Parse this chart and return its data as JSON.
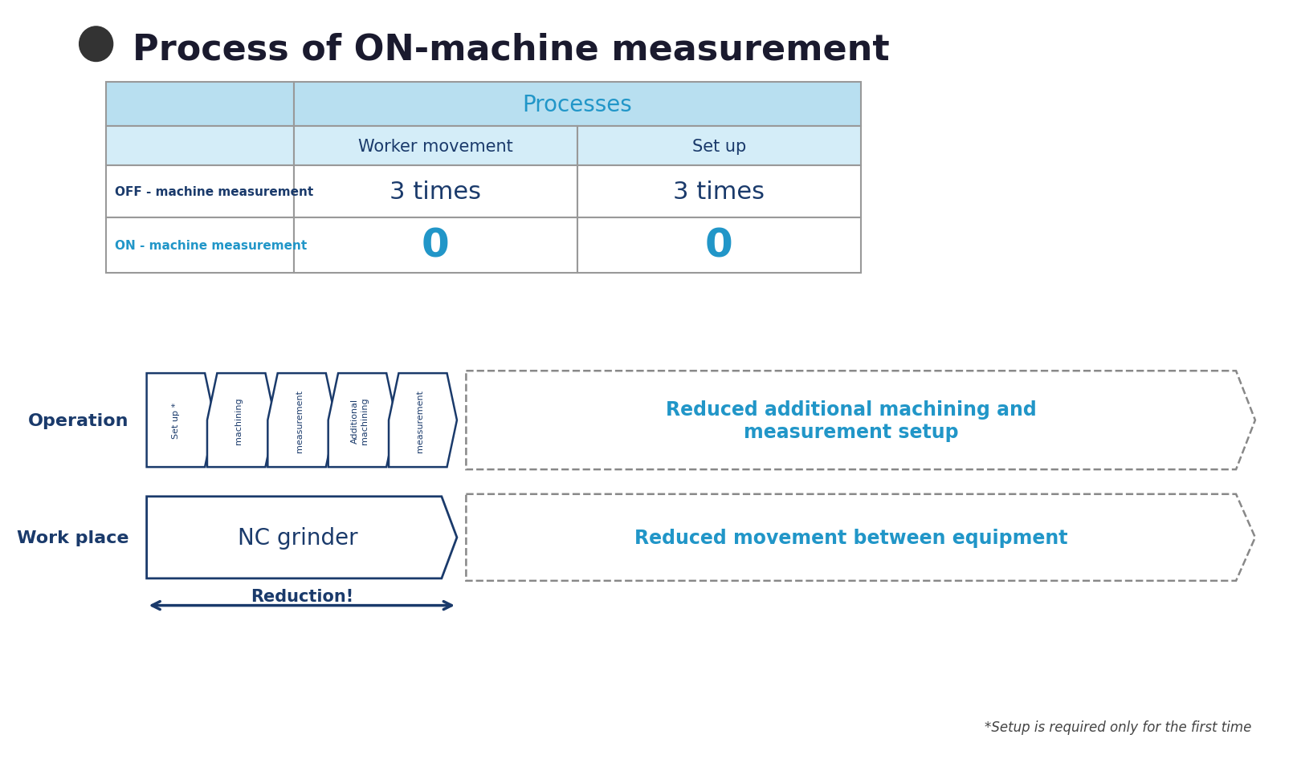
{
  "title": "Process of ON-machine measurement",
  "title_fontsize": 32,
  "title_color": "#1a1a2e",
  "bg_color": "#ffffff",
  "dark_blue": "#1a3a6b",
  "cyan_blue": "#2196C8",
  "light_blue_header": "#b8dff0",
  "light_blue_subheader": "#d4edf8",
  "table": {
    "processes_label": "Processes",
    "worker_movement": "Worker movement",
    "setup": "Set up",
    "off_label": "OFF - machine measurement",
    "on_label": "ON - machine measurement",
    "off_worker": "3 times",
    "off_setup": "3 times",
    "on_worker": "0",
    "on_setup": "0"
  },
  "operation_label": "Operation",
  "workplace_label": "Work place",
  "process_steps": [
    "Set up *",
    "machining",
    "measurement",
    "Additional\nmachining",
    "measurement"
  ],
  "nc_grinder_label": "NC grinder",
  "reduction_label": "Reduction!",
  "reduced_text1": "Reduced additional machining and\nmeasurement setup",
  "reduced_text2": "Reduced movement between equipment",
  "footnote": "*Setup is required only for the first time"
}
